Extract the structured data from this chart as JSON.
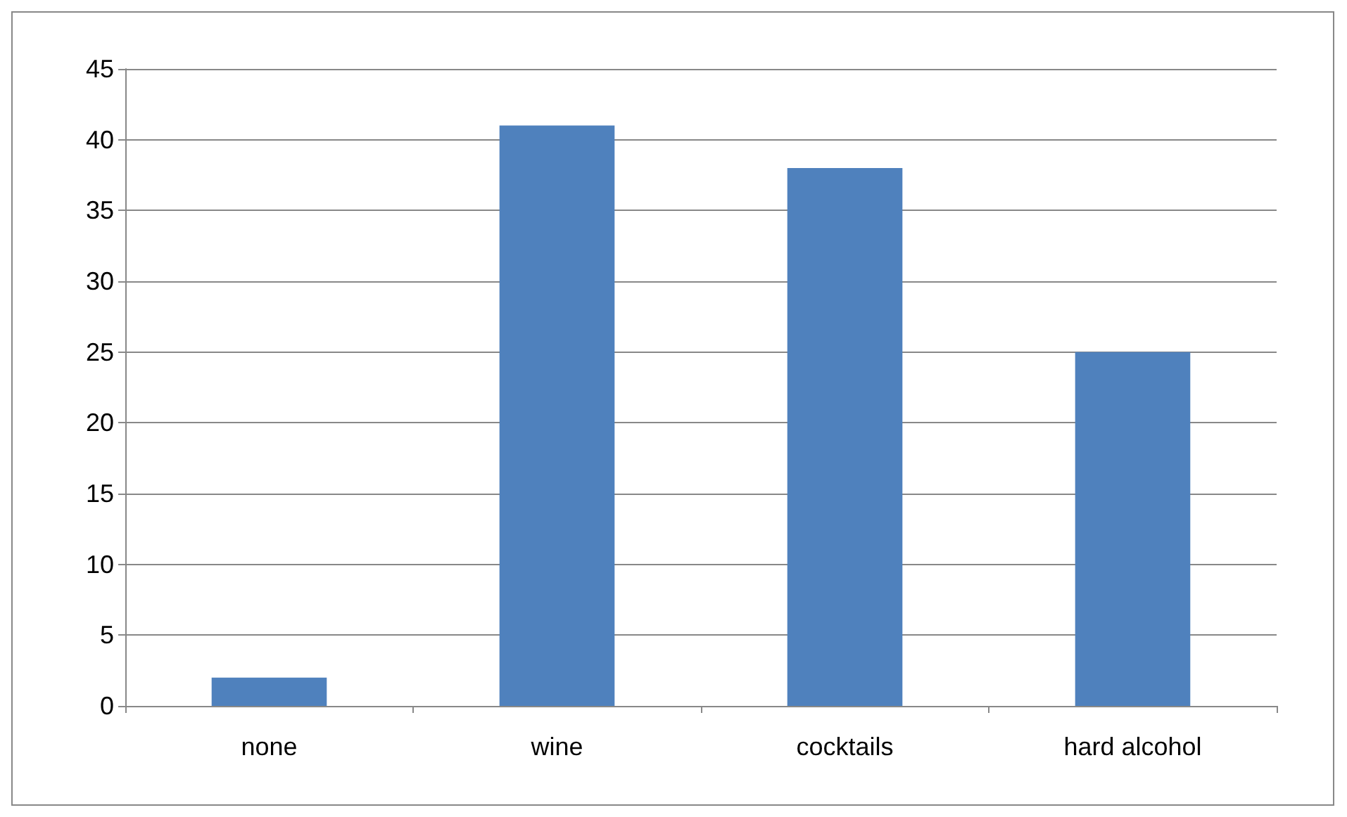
{
  "chart_data": {
    "type": "bar",
    "categories": [
      "none",
      "wine",
      "cocktails",
      "hard alcohol"
    ],
    "values": [
      2,
      41,
      38,
      25
    ],
    "color": "#4f81bd",
    "ylim": [
      0,
      45
    ],
    "yticks": [
      0,
      5,
      10,
      15,
      20,
      25,
      30,
      35,
      40,
      45
    ],
    "grid": "y"
  }
}
